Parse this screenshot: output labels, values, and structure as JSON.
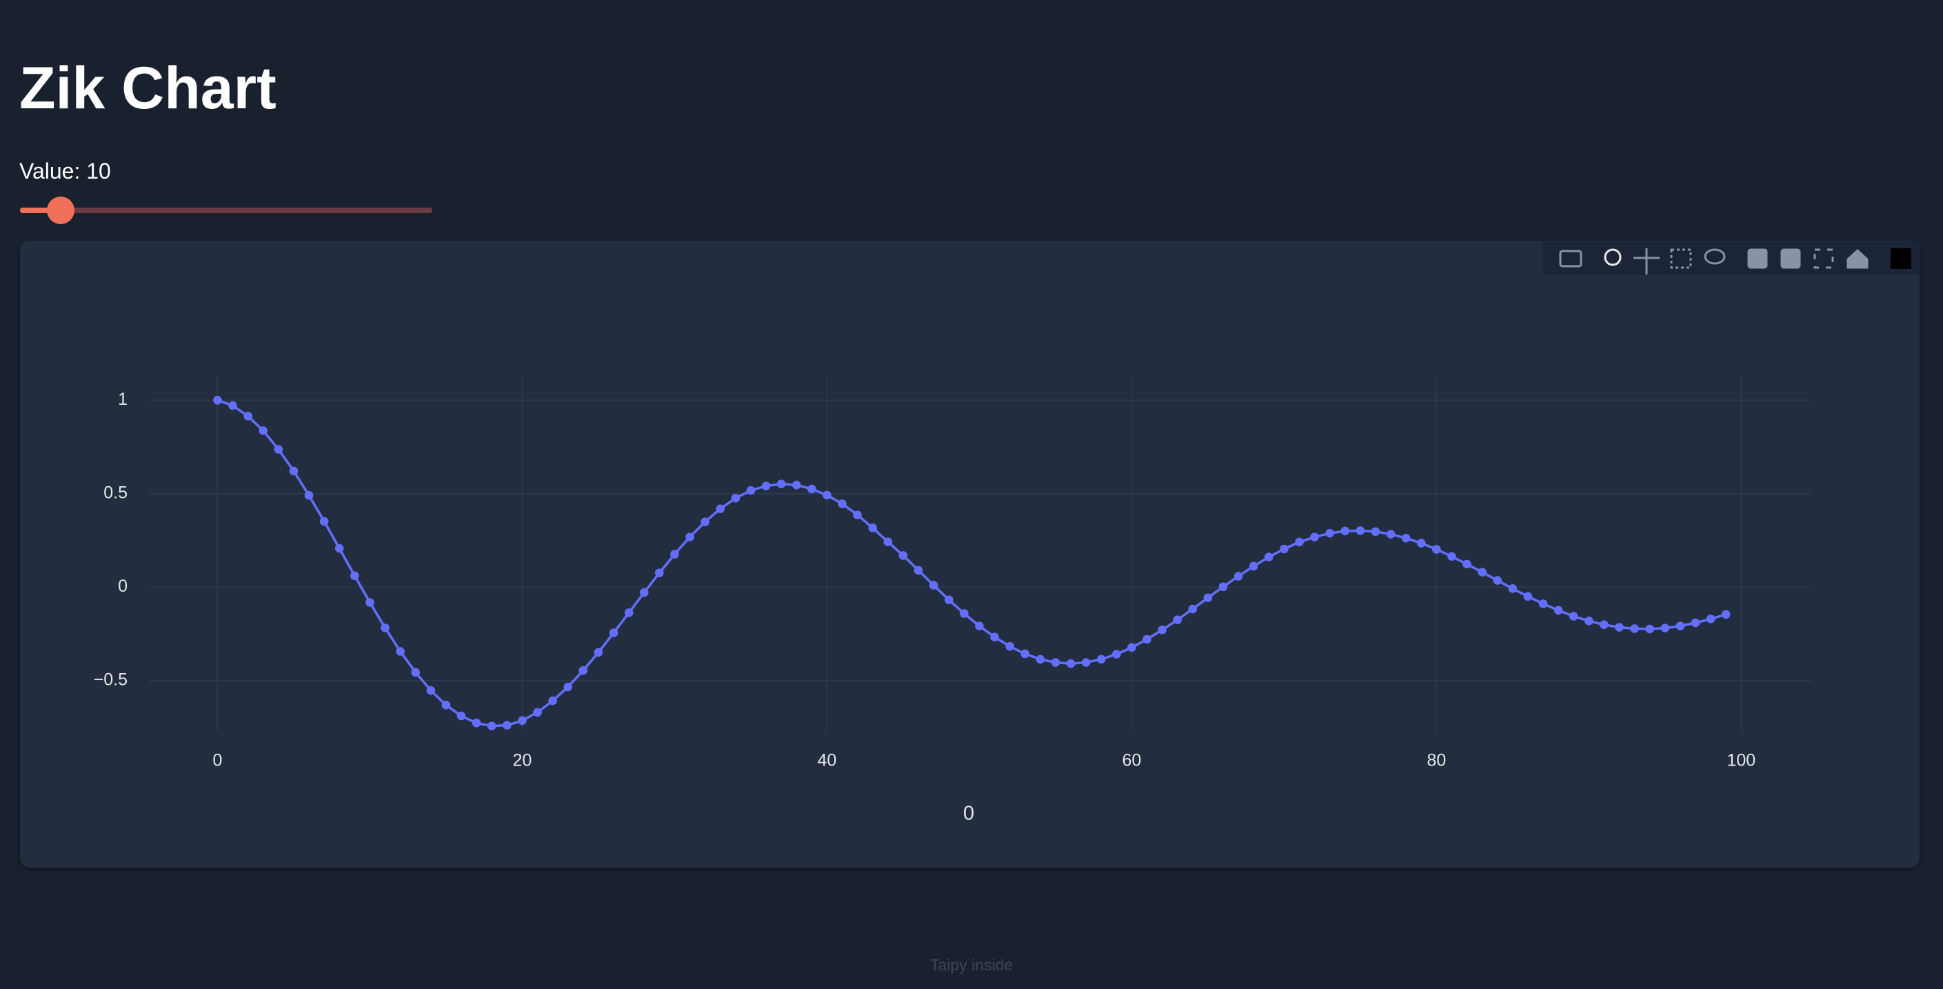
{
  "header": {
    "title": "Zik Chart"
  },
  "slider": {
    "label": "Value: 10"
  },
  "chart_data": {
    "type": "line",
    "x_label": "0",
    "color": "#636efa",
    "x": [
      0,
      1,
      2,
      3,
      4,
      5,
      6,
      7,
      8,
      9,
      10,
      11,
      12,
      13,
      14,
      15,
      16,
      17,
      18,
      19,
      20,
      21,
      22,
      23,
      24,
      25,
      26,
      27,
      28,
      29,
      30,
      31,
      32,
      33,
      34,
      35,
      36,
      37,
      38,
      39,
      40,
      41,
      42,
      43,
      44,
      45,
      46,
      47,
      48,
      49,
      50,
      51,
      52,
      53,
      54,
      55,
      56,
      57,
      58,
      59,
      60,
      61,
      62,
      63,
      64,
      65,
      66,
      67,
      68,
      69,
      70,
      71,
      72,
      73,
      74,
      75,
      76,
      77,
      78,
      79,
      80,
      81,
      82,
      83,
      84,
      85,
      86,
      87,
      88,
      89,
      90,
      91,
      92,
      93,
      94,
      95,
      96,
      97,
      98,
      99
    ],
    "values": [
      1.0,
      0.971,
      0.915,
      0.837,
      0.737,
      0.621,
      0.491,
      0.352,
      0.207,
      0.061,
      -0.082,
      -0.218,
      -0.344,
      -0.456,
      -0.553,
      -0.631,
      -0.689,
      -0.727,
      -0.743,
      -0.739,
      -0.714,
      -0.67,
      -0.608,
      -0.534,
      -0.446,
      -0.349,
      -0.245,
      -0.137,
      -0.029,
      0.076,
      0.176,
      0.268,
      0.349,
      0.419,
      0.476,
      0.517,
      0.541,
      0.552,
      0.546,
      0.525,
      0.492,
      0.446,
      0.386,
      0.317,
      0.242,
      0.169,
      0.09,
      0.01,
      -0.068,
      -0.141,
      -0.208,
      -0.267,
      -0.317,
      -0.357,
      -0.386,
      -0.403,
      -0.409,
      -0.403,
      -0.386,
      -0.359,
      -0.323,
      -0.279,
      -0.229,
      -0.175,
      -0.117,
      -0.057,
      0.002,
      0.058,
      0.112,
      0.161,
      0.204,
      0.241,
      0.268,
      0.288,
      0.3,
      0.302,
      0.297,
      0.283,
      0.262,
      0.235,
      0.202,
      0.164,
      0.123,
      0.08,
      0.036,
      -0.008,
      -0.05,
      -0.089,
      -0.124,
      -0.156,
      -0.181,
      -0.201,
      -0.215,
      -0.222,
      -0.224,
      -0.219,
      -0.208,
      -0.191,
      -0.17,
      -0.146
    ],
    "xlim": [
      -4.5,
      104.6
    ],
    "xticks": [
      0,
      20,
      40,
      60,
      80,
      100
    ],
    "ylim": [
      -0.77,
      1.13
    ],
    "yticks": [
      {
        "value": -0.5,
        "label": "−0.5"
      },
      0,
      0.5,
      1
    ],
    "grid": true
  },
  "footer": {
    "text": "Taipy inside"
  }
}
